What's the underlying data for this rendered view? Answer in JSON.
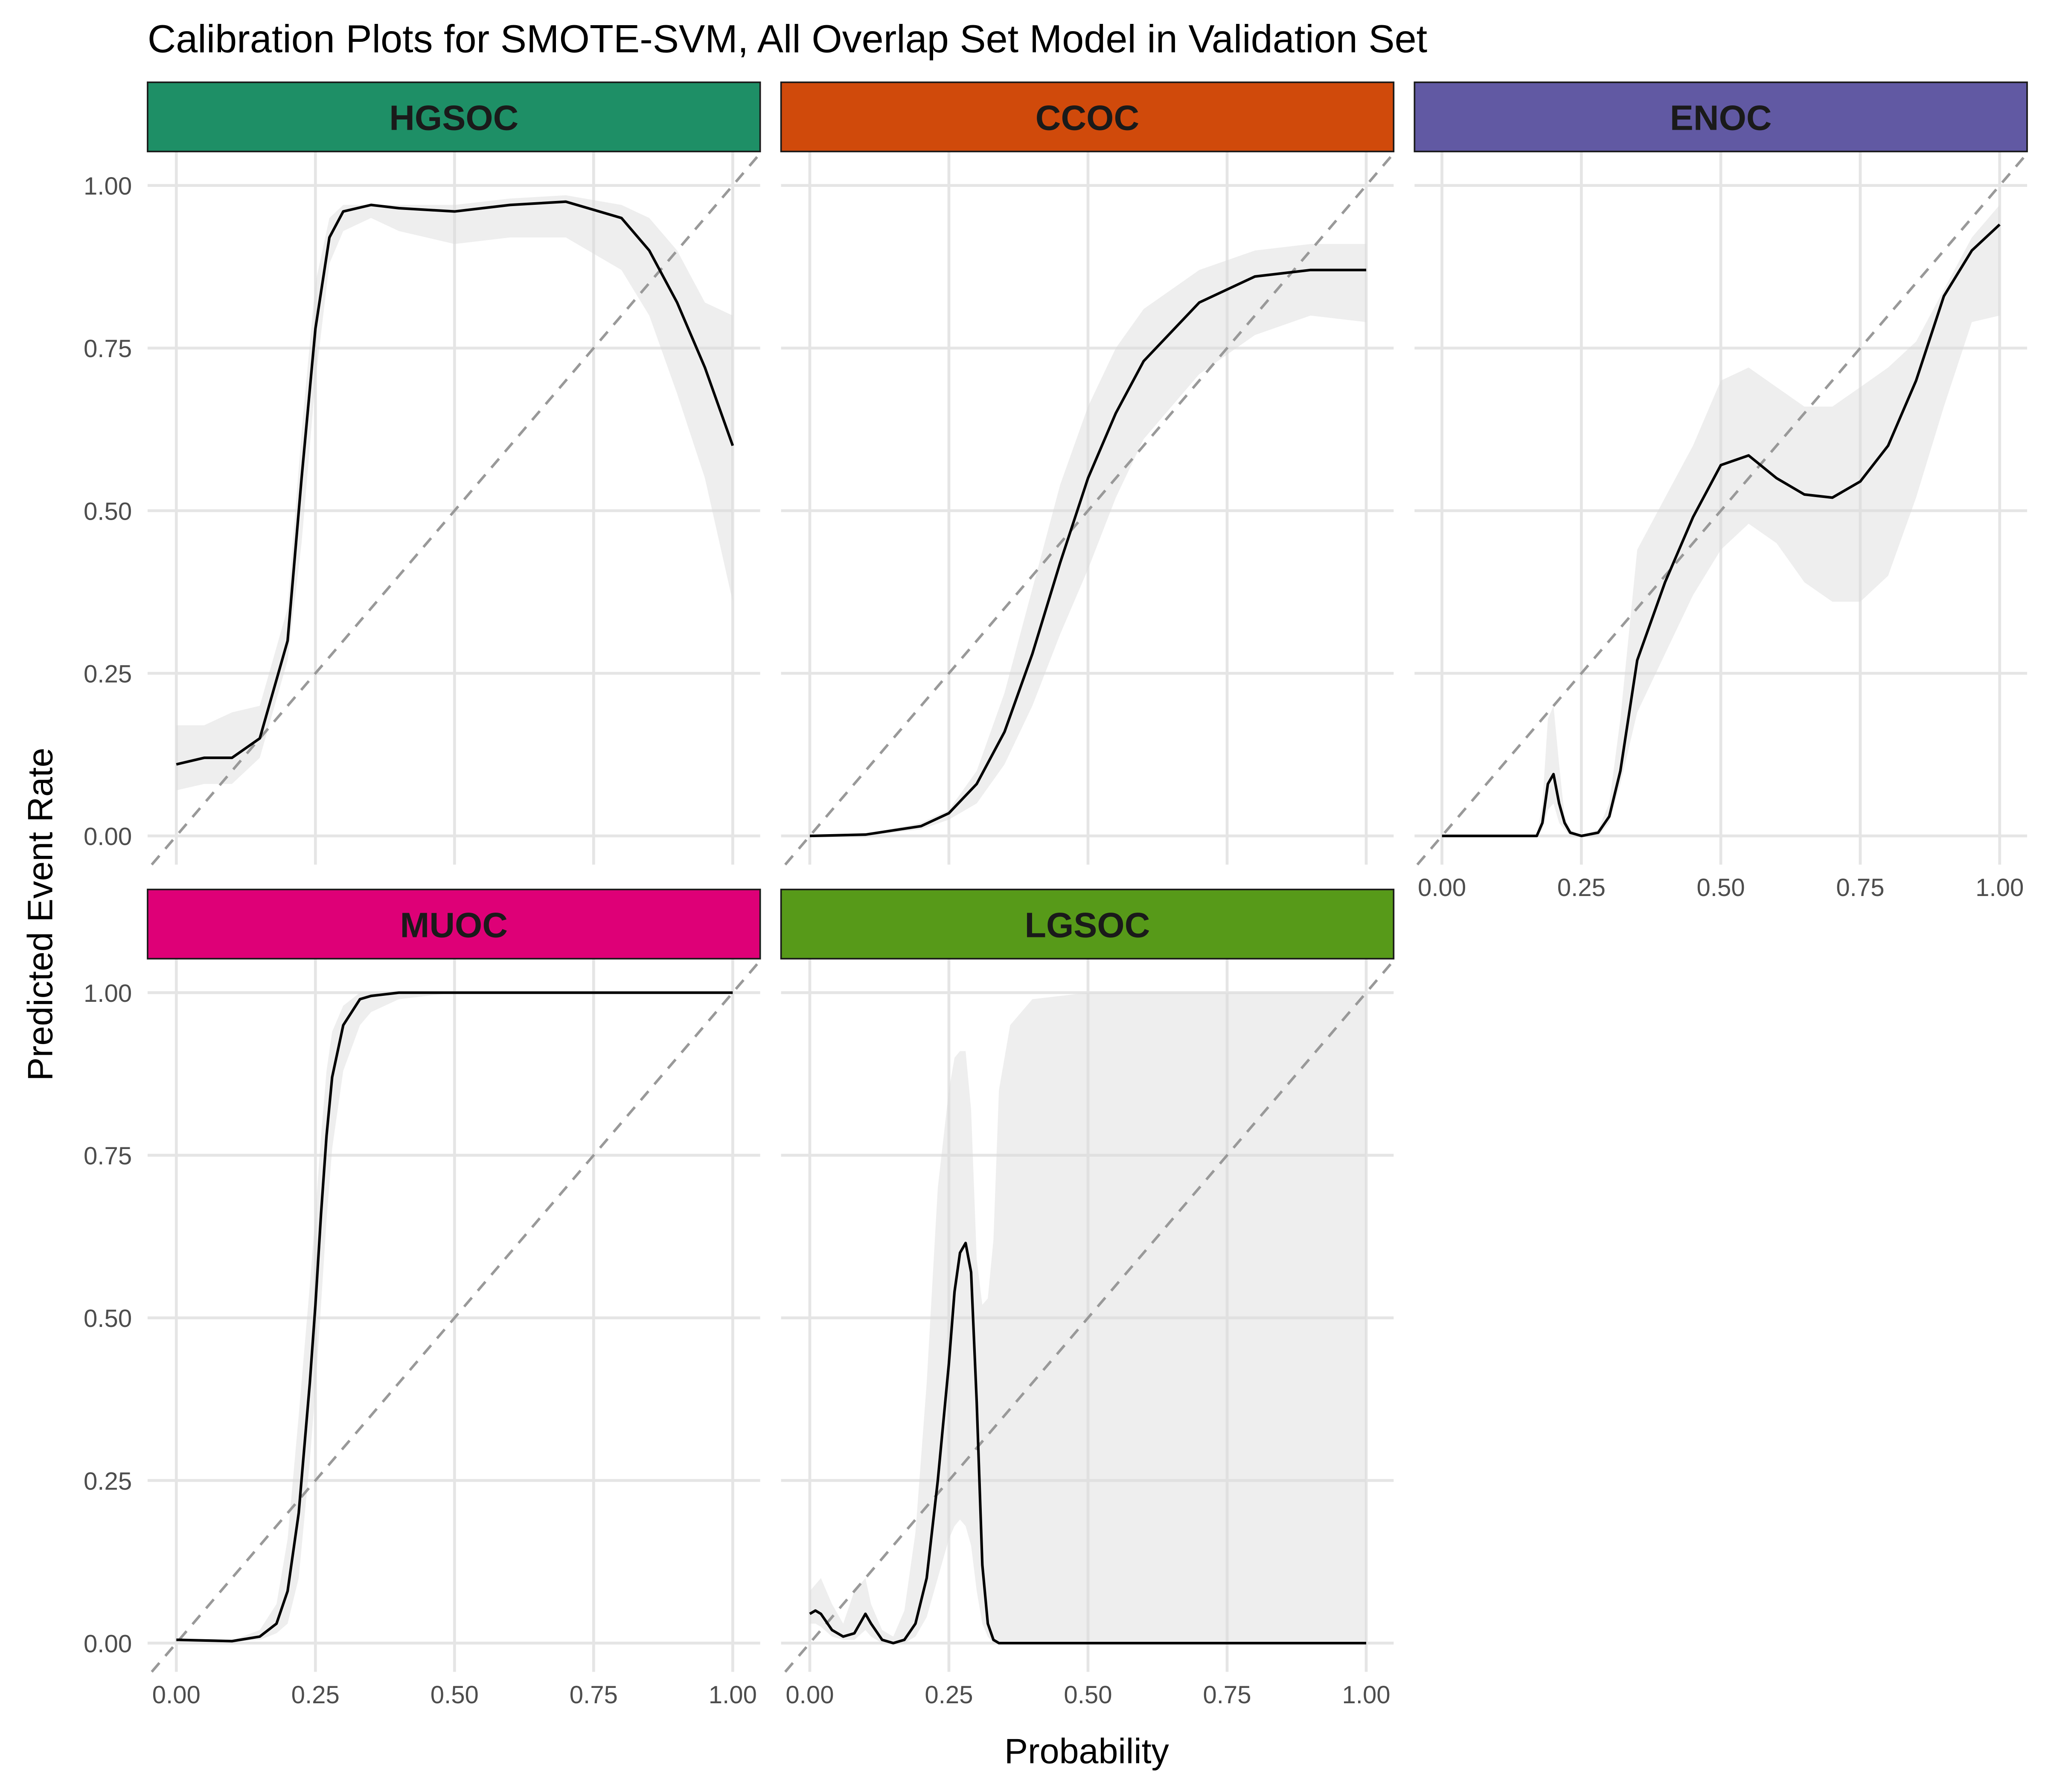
{
  "chart_data": {
    "type": "line",
    "title": "Calibration Plots for SMOTE-SVM, All Overlap Set Model in Validation Set",
    "xlabel": "Probability",
    "ylabel": "Predicted Event Rate",
    "xlim": [
      0,
      1
    ],
    "ylim": [
      0,
      1
    ],
    "x_ticks": [
      "0.00",
      "0.25",
      "0.50",
      "0.75",
      "1.00"
    ],
    "y_ticks": [
      "0.00",
      "0.25",
      "0.50",
      "0.75",
      "1.00"
    ],
    "grid": true,
    "reference_line": "y = x (dashed)",
    "panels": [
      {
        "name": "HGSOC",
        "strip_color": "#1e8f66",
        "x": [
          0,
          0.05,
          0.1,
          0.15,
          0.2,
          0.225,
          0.25,
          0.275,
          0.3,
          0.35,
          0.4,
          0.5,
          0.6,
          0.7,
          0.8,
          0.85,
          0.9,
          0.95,
          1.0
        ],
        "y": [
          0.11,
          0.12,
          0.12,
          0.15,
          0.3,
          0.55,
          0.78,
          0.92,
          0.96,
          0.97,
          0.965,
          0.96,
          0.97,
          0.975,
          0.95,
          0.9,
          0.82,
          0.72,
          0.6
        ],
        "ci_lower": [
          0.07,
          0.08,
          0.08,
          0.12,
          0.27,
          0.45,
          0.7,
          0.88,
          0.93,
          0.95,
          0.93,
          0.91,
          0.92,
          0.92,
          0.87,
          0.8,
          0.68,
          0.55,
          0.36
        ],
        "ci_upper": [
          0.17,
          0.17,
          0.19,
          0.2,
          0.35,
          0.62,
          0.85,
          0.95,
          0.97,
          0.97,
          0.97,
          0.97,
          0.98,
          0.985,
          0.97,
          0.95,
          0.9,
          0.82,
          0.8
        ]
      },
      {
        "name": "CCOC",
        "strip_color": "#d04a0b",
        "x": [
          0,
          0.1,
          0.2,
          0.25,
          0.3,
          0.35,
          0.4,
          0.45,
          0.5,
          0.55,
          0.6,
          0.7,
          0.8,
          0.9,
          1.0
        ],
        "y": [
          0.0,
          0.002,
          0.015,
          0.035,
          0.08,
          0.16,
          0.28,
          0.42,
          0.55,
          0.65,
          0.73,
          0.82,
          0.86,
          0.87,
          0.87
        ],
        "ci_lower": [
          0.0,
          0.0,
          0.01,
          0.025,
          0.05,
          0.11,
          0.2,
          0.31,
          0.41,
          0.52,
          0.61,
          0.71,
          0.77,
          0.8,
          0.79
        ],
        "ci_upper": [
          0.0,
          0.003,
          0.02,
          0.04,
          0.1,
          0.22,
          0.38,
          0.54,
          0.66,
          0.75,
          0.81,
          0.87,
          0.9,
          0.91,
          0.91
        ]
      },
      {
        "name": "ENOC",
        "strip_color": "#6159a3",
        "x": [
          0,
          0.1,
          0.17,
          0.18,
          0.19,
          0.2,
          0.21,
          0.22,
          0.23,
          0.25,
          0.28,
          0.3,
          0.32,
          0.35,
          0.4,
          0.45,
          0.5,
          0.55,
          0.6,
          0.65,
          0.7,
          0.75,
          0.8,
          0.85,
          0.9,
          0.95,
          1.0
        ],
        "y": [
          0.0,
          0.0,
          0.0,
          0.02,
          0.08,
          0.095,
          0.05,
          0.02,
          0.005,
          0.0,
          0.005,
          0.03,
          0.1,
          0.27,
          0.39,
          0.49,
          0.57,
          0.585,
          0.55,
          0.525,
          0.52,
          0.545,
          0.6,
          0.7,
          0.83,
          0.9,
          0.94
        ],
        "ci_lower": [
          0.0,
          0.0,
          0.0,
          0.01,
          0.04,
          0.05,
          0.02,
          0.01,
          0.0,
          0.0,
          0.0,
          0.02,
          0.08,
          0.19,
          0.28,
          0.37,
          0.44,
          0.48,
          0.45,
          0.39,
          0.36,
          0.36,
          0.4,
          0.52,
          0.66,
          0.79,
          0.8
        ],
        "ci_upper": [
          0.0,
          0.0,
          0.0,
          0.05,
          0.18,
          0.2,
          0.11,
          0.03,
          0.01,
          0.0,
          0.01,
          0.05,
          0.18,
          0.44,
          0.52,
          0.6,
          0.7,
          0.72,
          0.69,
          0.66,
          0.66,
          0.69,
          0.72,
          0.76,
          0.84,
          0.92,
          0.97
        ]
      },
      {
        "name": "MUOC",
        "strip_color": "#de0077",
        "x": [
          0,
          0.1,
          0.15,
          0.18,
          0.2,
          0.22,
          0.24,
          0.25,
          0.26,
          0.27,
          0.28,
          0.3,
          0.33,
          0.35,
          0.4,
          0.5,
          0.75,
          1.0
        ],
        "y": [
          0.005,
          0.003,
          0.01,
          0.03,
          0.08,
          0.2,
          0.4,
          0.52,
          0.66,
          0.78,
          0.87,
          0.95,
          0.99,
          0.995,
          1.0,
          1.0,
          1.0,
          1.0
        ],
        "ci_lower": [
          0.005,
          0.002,
          0.005,
          0.015,
          0.03,
          0.1,
          0.28,
          0.39,
          0.52,
          0.65,
          0.76,
          0.88,
          0.95,
          0.97,
          0.99,
          1.0,
          1.0,
          1.0
        ],
        "ci_upper": [
          0.005,
          0.004,
          0.02,
          0.06,
          0.16,
          0.35,
          0.55,
          0.66,
          0.78,
          0.88,
          0.94,
          0.98,
          1.0,
          1.0,
          1.0,
          1.0,
          1.0,
          1.0
        ]
      },
      {
        "name": "LGSOC",
        "strip_color": "#579a19",
        "x": [
          0,
          0.01,
          0.02,
          0.04,
          0.06,
          0.08,
          0.1,
          0.11,
          0.13,
          0.15,
          0.17,
          0.19,
          0.21,
          0.23,
          0.25,
          0.26,
          0.27,
          0.28,
          0.29,
          0.3,
          0.31,
          0.32,
          0.33,
          0.34,
          0.36,
          0.4,
          0.5,
          0.75,
          1.0
        ],
        "y": [
          0.045,
          0.05,
          0.045,
          0.02,
          0.01,
          0.015,
          0.045,
          0.03,
          0.005,
          0.0,
          0.005,
          0.03,
          0.1,
          0.25,
          0.43,
          0.54,
          0.6,
          0.615,
          0.57,
          0.37,
          0.12,
          0.03,
          0.005,
          0.0,
          0.0,
          0.0,
          0.0,
          0.0,
          0.0
        ],
        "ci_lower": [
          0.03,
          0.03,
          0.025,
          0.01,
          0.005,
          0.005,
          0.02,
          0.01,
          0.0,
          0.0,
          0.0,
          0.01,
          0.04,
          0.1,
          0.16,
          0.18,
          0.19,
          0.18,
          0.15,
          0.08,
          0.03,
          0.01,
          0.0,
          0.0,
          0.0,
          0.0,
          0.0,
          0.0,
          0.0
        ],
        "ci_upper": [
          0.08,
          0.09,
          0.1,
          0.06,
          0.03,
          0.08,
          0.1,
          0.06,
          0.02,
          0.01,
          0.05,
          0.17,
          0.4,
          0.7,
          0.85,
          0.9,
          0.91,
          0.91,
          0.82,
          0.59,
          0.52,
          0.53,
          0.62,
          0.85,
          0.95,
          0.99,
          1.0,
          1.0,
          1.0
        ]
      }
    ]
  }
}
